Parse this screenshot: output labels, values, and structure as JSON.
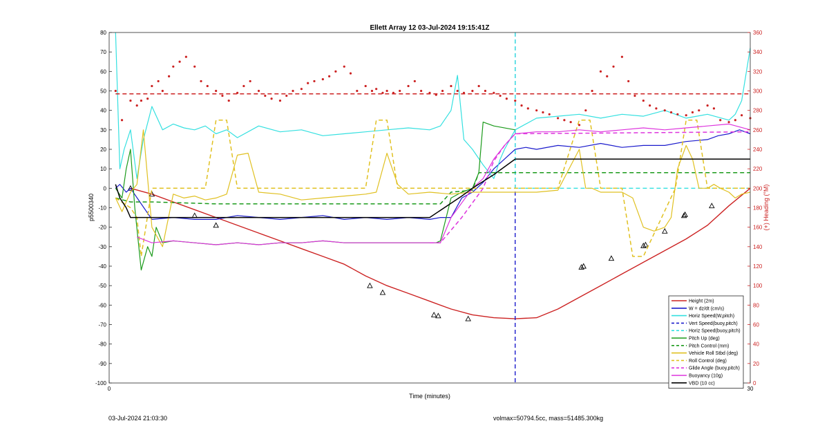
{
  "footer": {
    "timestamp": "03-Jul-2024 21:03:30",
    "mass_info": "volmax=50794.5cc, mass=51485.300kg"
  },
  "chart_data": {
    "type": "line",
    "title": "Ellett Array 12 03-Jul-2024 19:15:41Z",
    "xlabel": "Time (minutes)",
    "ylabel_left": "p5500340",
    "ylabel_right": "(+) Heading (°M)",
    "xlim": [
      0,
      30
    ],
    "ylim_left": [
      -100,
      80
    ],
    "ylim_right": [
      0,
      360
    ],
    "xticks": [
      0,
      30
    ],
    "yticks_left": [
      80,
      70,
      60,
      50,
      40,
      30,
      20,
      10,
      0,
      -10,
      -20,
      -30,
      -40,
      -50,
      -60,
      -70,
      -80,
      -90,
      -100
    ],
    "yticks_right": [
      360,
      340,
      320,
      300,
      280,
      260,
      240,
      220,
      200,
      180,
      160,
      140,
      120,
      100,
      80,
      60,
      40,
      20,
      0
    ],
    "grid": false,
    "legend_placement": "bottom-right",
    "legend": [
      {
        "label": "Height (2m)",
        "color": "#cc2222",
        "dash": "solid"
      },
      {
        "label": "W = dz/dt (cm/s)",
        "color": "#1a1acc",
        "dash": "solid"
      },
      {
        "label": "Horiz Speed(W,pitch)",
        "color": "#33e0e0",
        "dash": "solid"
      },
      {
        "label": "Vert Speed(buoy,pitch)",
        "color": "#1a1acc",
        "dash": "dashed"
      },
      {
        "label": "Horiz Speed(buoy,pitch)",
        "color": "#33e0e0",
        "dash": "dashed"
      },
      {
        "label": "Pitch Up (deg)",
        "color": "#1a9a1a",
        "dash": "solid"
      },
      {
        "label": "Pitch Control (mm)",
        "color": "#1a9a1a",
        "dash": "dashed"
      },
      {
        "label": "Vehicle Roll Stbd (deg)",
        "color": "#e0c020",
        "dash": "solid"
      },
      {
        "label": "Roll Control (deg)",
        "color": "#e0c020",
        "dash": "dashed"
      },
      {
        "label": "Glide Angle (buoy,pitch)",
        "color": "#dd33dd",
        "dash": "dashed"
      },
      {
        "label": "Buoyancy (10g)",
        "color": "#dd33dd",
        "dash": "solid"
      },
      {
        "label": "VBD (10 cc)",
        "color": "#000000",
        "dash": "solid"
      }
    ],
    "series": [
      {
        "name": "Height (2m)",
        "color": "#cc2222",
        "dash": "solid",
        "width": 1.4,
        "x": [
          1,
          2,
          3,
          4,
          5,
          6,
          7,
          8,
          9,
          10,
          11,
          12,
          13,
          14,
          15,
          16,
          17,
          18,
          19,
          20,
          21,
          22,
          23,
          24,
          25,
          26,
          27,
          28,
          29,
          30
        ],
        "y": [
          0,
          -3,
          -7,
          -11,
          -15,
          -19,
          -23,
          -27,
          -31,
          -35,
          -39,
          -45,
          -50,
          -54,
          -58,
          -62,
          -65,
          -66.5,
          -67,
          -66.5,
          -62,
          -56,
          -50,
          -44,
          -38,
          -32,
          -26,
          -19,
          -9,
          0
        ]
      },
      {
        "name": "Height markers",
        "color": "#cc2222",
        "marker": "triangle",
        "x": [
          1,
          2,
          4,
          5,
          12.2,
          12.8,
          15.2,
          15.4,
          16.8,
          22.1,
          22.2,
          23.5,
          25,
          25.1,
          26,
          26.9,
          26.95,
          28.2
        ],
        "y": [
          0,
          -3,
          -14,
          -19,
          -50,
          -53.5,
          -65,
          -65.5,
          -67,
          -40.5,
          -40,
          -36,
          -29.5,
          -29,
          -22,
          -14,
          -13.5,
          -9
        ]
      },
      {
        "name": "W = dz/dt (cm/s)",
        "color": "#1a1acc",
        "dash": "solid",
        "width": 1.2,
        "x": [
          0.3,
          0.5,
          0.8,
          1.0,
          1.5,
          2.0,
          3.0,
          4.0,
          5.0,
          6.0,
          7.0,
          8.0,
          9.0,
          10.0,
          11.0,
          12.0,
          13.0,
          14.0,
          15.0,
          15.5,
          16.0,
          16.5,
          17.0,
          17.5,
          18.0,
          18.5,
          19.0,
          19.5,
          20.0,
          21.0,
          22.0,
          23.0,
          24.0,
          25.0,
          26.0,
          27.0,
          28.0,
          28.5,
          29.0,
          29.5,
          30.0
        ],
        "y": [
          0,
          2,
          -2,
          0,
          -8,
          -16,
          -15,
          -16,
          -16,
          -14,
          -15,
          -16,
          -15,
          -14,
          -16,
          -15,
          -16,
          -15,
          -16,
          -15,
          -15,
          -5,
          -2,
          3,
          10,
          15,
          20,
          21,
          20,
          22,
          21,
          23,
          21,
          22,
          22,
          24,
          25,
          27,
          28,
          30,
          28
        ]
      },
      {
        "name": "Horiz Speed(W,pitch)",
        "color": "#33e0e0",
        "dash": "solid",
        "width": 1.2,
        "x": [
          0.3,
          0.5,
          0.7,
          1.0,
          1.3,
          1.6,
          2.0,
          2.5,
          3.0,
          3.5,
          4.0,
          4.5,
          5.0,
          5.5,
          6.0,
          7.0,
          8.0,
          9.0,
          10.0,
          11.0,
          12.0,
          13.0,
          14.0,
          15.0,
          15.5,
          16.0,
          16.3,
          16.6,
          17.0,
          17.5,
          18.0,
          18.3,
          18.5,
          19.0,
          20.0,
          21.0,
          22.0,
          23.0,
          24.0,
          25.0,
          26.0,
          27.0,
          28.0,
          29.0,
          29.3,
          29.6,
          30.0
        ],
        "y": [
          80,
          10,
          20,
          30,
          5,
          25,
          42,
          30,
          33,
          31,
          30,
          32,
          28,
          30,
          26,
          32,
          29,
          30,
          27,
          28,
          29,
          30,
          31,
          30,
          32,
          40,
          58,
          25,
          20,
          12,
          5,
          15,
          20,
          30,
          36,
          37,
          38,
          36,
          38,
          37,
          40,
          36,
          38,
          35,
          38,
          45,
          72
        ]
      },
      {
        "name": "Vert Speed(buoy,pitch)",
        "color": "#1a1acc",
        "dash": "dashed",
        "width": 1.4,
        "x": [
          19,
          19
        ],
        "y": [
          80,
          -100
        ]
      },
      {
        "name": "Horiz Speed(buoy,pitch)",
        "color": "#33e0e0",
        "dash": "dashed",
        "width": 1.4,
        "x": [
          19,
          19,
          19,
          30
        ],
        "y": [
          80,
          0,
          0,
          0
        ]
      },
      {
        "name": "Pitch Up (deg)",
        "color": "#1a9a1a",
        "dash": "solid",
        "width": 1.2,
        "x": [
          0.3,
          0.6,
          0.8,
          1.0,
          1.2,
          1.5,
          1.8,
          2.0,
          2.2,
          2.5,
          3.0,
          4.0,
          5.0,
          6.0,
          7.0,
          8.0,
          9.0,
          10.0,
          11.0,
          12.0,
          13.0,
          14.0,
          15.0,
          15.3,
          15.5,
          16.0,
          16.5,
          17.0,
          17.3,
          17.5,
          18.0,
          19.0
        ],
        "y": [
          0,
          -5,
          10,
          20,
          -10,
          -42,
          -30,
          -35,
          -20,
          -28,
          -27,
          -28,
          -29,
          -28,
          -29,
          -28,
          -28,
          -27,
          -28,
          -28,
          -28,
          -28,
          -28,
          -28,
          -27,
          -5,
          -2,
          0,
          8,
          34,
          32,
          30
        ]
      },
      {
        "name": "Pitch Control (mm)",
        "color": "#1a9a1a",
        "dash": "dashed",
        "width": 1.5,
        "x": [
          0.3,
          1.0,
          2.0,
          5.0,
          10.0,
          15.0,
          15.5,
          16.0,
          17.0,
          17.3,
          18.0,
          19.0,
          22.0,
          26.0,
          30.0
        ],
        "y": [
          -5,
          -7,
          -7,
          -8,
          -8,
          -8,
          -8,
          -2,
          -1,
          8,
          8,
          8,
          8,
          8,
          8
        ]
      },
      {
        "name": "Vehicle Roll Stbd (deg)",
        "color": "#e0c020",
        "dash": "solid",
        "width": 1.2,
        "x": [
          0.3,
          0.6,
          1.0,
          1.3,
          1.6,
          2.0,
          2.5,
          3.0,
          3.5,
          4.0,
          4.5,
          5.0,
          5.5,
          6.0,
          6.5,
          7.0,
          8.0,
          9.0,
          10.0,
          11.0,
          12.0,
          12.5,
          13.0,
          13.5,
          14.0,
          15.0,
          16.0,
          17.0,
          18.0,
          19.0,
          20.0,
          21.0,
          22.0,
          22.3,
          22.6,
          23.0,
          23.3,
          23.6,
          24.0,
          24.5,
          25.0,
          25.5,
          26.0,
          26.3,
          26.6,
          27.0,
          27.3,
          27.6,
          28.0,
          28.3,
          28.6,
          29.0,
          29.3,
          29.6,
          30.0
        ],
        "y": [
          -5,
          -12,
          -2,
          2,
          30,
          -20,
          -30,
          -3,
          -5,
          -4,
          -6,
          -5,
          -3,
          17,
          18,
          -2,
          -3,
          -6,
          -5,
          -4,
          -3,
          -2,
          18,
          2,
          -3,
          -2,
          -3,
          -2,
          -2,
          -2,
          -2,
          -1,
          20,
          0,
          0,
          -2,
          -2,
          -2,
          -2,
          -5,
          -20,
          -22,
          -20,
          -15,
          10,
          22,
          15,
          0,
          0,
          2,
          0,
          -2,
          -5,
          -3,
          -2
        ]
      },
      {
        "name": "Roll Control (deg)",
        "color": "#e0c020",
        "dash": "dashed",
        "width": 1.5,
        "x": [
          0.3,
          1.0,
          1.3,
          1.5,
          2.0,
          2.3,
          4.5,
          5.0,
          5.5,
          6.0,
          10.0,
          12.0,
          12.5,
          13.0,
          13.5,
          14.0,
          17.0,
          19.0,
          21.0,
          22.0,
          22.5,
          23.0,
          24.0,
          24.5,
          25.0,
          26.5,
          27.0,
          27.5,
          28.0,
          30.0
        ],
        "y": [
          -5,
          -10,
          -15,
          -35,
          0,
          0,
          0,
          35,
          35,
          0,
          0,
          0,
          35,
          35,
          0,
          0,
          0,
          0,
          0,
          35,
          35,
          0,
          0,
          -35,
          -35,
          0,
          35,
          35,
          0,
          0
        ]
      },
      {
        "name": "Glide Angle (buoy,pitch)",
        "color": "#dd33dd",
        "dash": "dashed",
        "width": 1.5,
        "x": [
          15,
          15.5,
          16.5,
          17.5,
          18,
          18.5,
          19,
          30
        ],
        "y": [
          -28,
          -28,
          -15,
          0,
          14,
          22,
          28,
          29
        ]
      },
      {
        "name": "Buoyancy (10g)",
        "color": "#dd33dd",
        "dash": "solid",
        "width": 1.2,
        "x": [
          1.3,
          2.0,
          3.0,
          4.0,
          5.0,
          6.0,
          7.0,
          8.0,
          9.0,
          10.0,
          11.0,
          12.0,
          13.0,
          14.0,
          15.0,
          15.5,
          16.0,
          17.0,
          17.5,
          18.0,
          18.5,
          19.0,
          20.0,
          21.0,
          22.0,
          23.0,
          24.0,
          25.0,
          26.0,
          27.0,
          28.0,
          29.0,
          30.0
        ],
        "y": [
          -25,
          -28,
          -27,
          -28,
          -29,
          -28,
          -29,
          -28,
          -28,
          -27,
          -28,
          -28,
          -28,
          -28,
          -28,
          -28,
          -15,
          0,
          5,
          15,
          22,
          28,
          29,
          29,
          30,
          29,
          30,
          31,
          30,
          31,
          32,
          33,
          30
        ]
      },
      {
        "name": "VBD (10 cc)",
        "color": "#000000",
        "dash": "solid",
        "width": 1.5,
        "x": [
          0.3,
          0.5,
          0.8,
          1.0,
          15.0,
          16.5,
          17.0,
          18.0,
          19.0,
          30.0
        ],
        "y": [
          2,
          -5,
          -10,
          -15,
          -15,
          -4,
          0,
          7,
          15,
          15
        ]
      },
      {
        "name": "Heading",
        "color": "#cc2222",
        "marker": "dot",
        "axis": "right",
        "x": [
          0.3,
          0.6,
          1.0,
          1.3,
          1.5,
          1.8,
          2.0,
          2.3,
          2.5,
          2.8,
          3.0,
          3.3,
          3.6,
          4.0,
          4.3,
          4.6,
          5.0,
          5.3,
          5.6,
          6.0,
          6.3,
          6.6,
          7.0,
          7.3,
          7.6,
          8.0,
          8.3,
          8.6,
          9.0,
          9.3,
          9.6,
          10.0,
          10.3,
          10.6,
          11.0,
          11.3,
          11.6,
          12.0,
          12.3,
          12.5,
          12.8,
          13.0,
          13.3,
          13.6,
          14.0,
          14.3,
          14.6,
          15.0,
          15.3,
          15.6,
          16.0,
          16.3,
          16.6,
          17.0,
          17.3,
          17.6,
          18.0,
          18.3,
          18.6,
          19.0,
          19.3,
          19.6,
          20.0,
          20.3,
          20.6,
          21.0,
          21.3,
          21.6,
          22.0,
          22.3,
          22.6,
          23.0,
          23.3,
          23.6,
          24.0,
          24.3,
          24.6,
          25.0,
          25.3,
          25.6,
          26.0,
          26.3,
          26.6,
          27.0,
          27.3,
          27.6,
          28.0,
          28.3,
          28.6,
          29.0,
          29.3,
          29.6,
          30.0
        ],
        "y": [
          300,
          270,
          290,
          285,
          290,
          292,
          305,
          310,
          300,
          315,
          325,
          330,
          335,
          325,
          310,
          305,
          300,
          295,
          290,
          298,
          305,
          310,
          300,
          295,
          292,
          290,
          295,
          300,
          302,
          308,
          310,
          312,
          315,
          320,
          325,
          318,
          300,
          305,
          300,
          302,
          298,
          300,
          298,
          300,
          305,
          310,
          300,
          298,
          296,
          300,
          305,
          300,
          298,
          300,
          305,
          300,
          298,
          295,
          292,
          290,
          285,
          282,
          280,
          278,
          276,
          272,
          270,
          268,
          265,
          280,
          300,
          320,
          315,
          325,
          335,
          310,
          295,
          290,
          285,
          282,
          280,
          278,
          276,
          275,
          278,
          280,
          285,
          282,
          270,
          268,
          270,
          275,
          272
        ]
      },
      {
        "name": "Heading target",
        "color": "#cc2222",
        "dash": "dashed",
        "width": 1.5,
        "axis": "right",
        "x": [
          0.3,
          30
        ],
        "y": [
          297,
          297
        ]
      }
    ]
  }
}
